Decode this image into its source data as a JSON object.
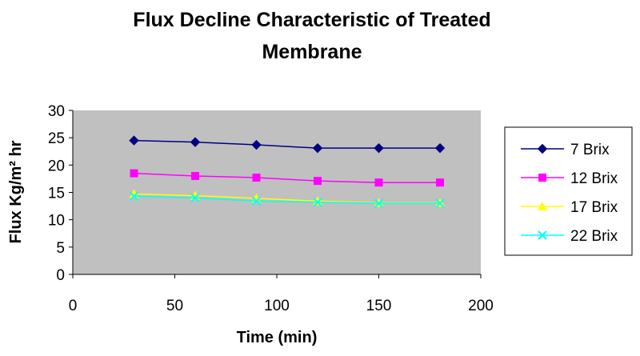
{
  "chart_data": {
    "type": "line",
    "title_lines": [
      "Flux Decline Characteristic of Treated",
      "Membrane"
    ],
    "xlabel": "Time (min)",
    "ylabel": "Flux Kg/m² hr",
    "xlim": [
      0,
      200
    ],
    "ylim": [
      0,
      30
    ],
    "xticks": [
      0,
      50,
      100,
      150,
      200
    ],
    "yticks": [
      0,
      5,
      10,
      15,
      20,
      25,
      30
    ],
    "grid": false,
    "plot_background": "#c0c0c0",
    "legend_position": "right",
    "x": [
      30,
      60,
      90,
      120,
      150,
      180
    ],
    "series": [
      {
        "name": "7 Brix",
        "values": [
          24.5,
          24.2,
          23.7,
          23.1,
          23.1,
          23.1
        ],
        "color": "#000080",
        "marker": "diamond"
      },
      {
        "name": "12 Brix",
        "values": [
          18.5,
          18.0,
          17.7,
          17.1,
          16.8,
          16.8
        ],
        "color": "#ff00ff",
        "marker": "square"
      },
      {
        "name": "17 Brix",
        "values": [
          14.7,
          14.4,
          13.9,
          13.4,
          13.1,
          13.1
        ],
        "color": "#ffff00",
        "marker": "triangle"
      },
      {
        "name": "22 Brix",
        "values": [
          14.3,
          14.0,
          13.4,
          13.2,
          13.0,
          13.0
        ],
        "color": "#00ffff",
        "marker": "x"
      }
    ]
  }
}
